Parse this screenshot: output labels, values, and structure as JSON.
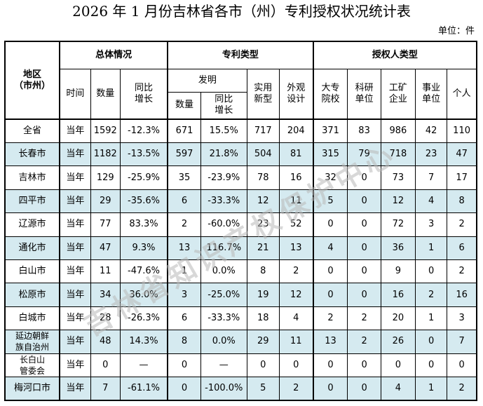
{
  "title": "2026 年 1 月份吉林省各市（州）专利授权状况统计表",
  "unit": "单位：件",
  "headers": {
    "region": "地区（市州）",
    "overall": "总体情况",
    "patent_type": "专利类型",
    "grantee_type": "授权人类型",
    "time": "时间",
    "count": "数量",
    "yoy": "同比增长",
    "invention": "发明",
    "invention_count": "数量",
    "invention_yoy": "同比增长",
    "utility": "实用新型",
    "design": "外观设计",
    "university": "大专院校",
    "research": "科研单位",
    "enterprise": "工矿企业",
    "institution": "事业单位",
    "individual": "个人"
  },
  "rows": [
    {
      "region": "全省",
      "time": "当年",
      "count": "1592",
      "yoy": "-12.3%",
      "inv_count": "671",
      "inv_yoy": "15.5%",
      "utility": "717",
      "design": "204",
      "univ": "371",
      "research": "83",
      "enterprise": "986",
      "institution": "42",
      "individual": "110",
      "shaded": false
    },
    {
      "region": "长春市",
      "time": "当年",
      "count": "1182",
      "yoy": "-13.5%",
      "inv_count": "597",
      "inv_yoy": "21.8%",
      "utility": "504",
      "design": "81",
      "univ": "315",
      "research": "79",
      "enterprise": "718",
      "institution": "23",
      "individual": "47",
      "shaded": true
    },
    {
      "region": "吉林市",
      "time": "当年",
      "count": "129",
      "yoy": "-25.9%",
      "inv_count": "35",
      "inv_yoy": "-23.9%",
      "utility": "78",
      "design": "16",
      "univ": "32",
      "research": "0",
      "enterprise": "73",
      "institution": "7",
      "individual": "17",
      "shaded": false
    },
    {
      "region": "四平市",
      "time": "当年",
      "count": "29",
      "yoy": "-35.6%",
      "inv_count": "6",
      "inv_yoy": "-33.3%",
      "utility": "12",
      "design": "11",
      "univ": "5",
      "research": "0",
      "enterprise": "12",
      "institution": "4",
      "individual": "8",
      "shaded": true
    },
    {
      "region": "辽源市",
      "time": "当年",
      "count": "77",
      "yoy": "83.3%",
      "inv_count": "2",
      "inv_yoy": "-60.0%",
      "utility": "23",
      "design": "52",
      "univ": "0",
      "research": "0",
      "enterprise": "72",
      "institution": "3",
      "individual": "2",
      "shaded": false
    },
    {
      "region": "通化市",
      "time": "当年",
      "count": "47",
      "yoy": "9.3%",
      "inv_count": "13",
      "inv_yoy": "116.7%",
      "utility": "21",
      "design": "13",
      "univ": "4",
      "research": "0",
      "enterprise": "36",
      "institution": "1",
      "individual": "6",
      "shaded": true
    },
    {
      "region": "白山市",
      "time": "当年",
      "count": "11",
      "yoy": "-47.6%",
      "inv_count": "1",
      "inv_yoy": "0.0%",
      "utility": "8",
      "design": "2",
      "univ": "0",
      "research": "0",
      "enterprise": "9",
      "institution": "0",
      "individual": "2",
      "shaded": false
    },
    {
      "region": "松原市",
      "time": "当年",
      "count": "34",
      "yoy": "36.0%",
      "inv_count": "3",
      "inv_yoy": "-25.0%",
      "utility": "19",
      "design": "12",
      "univ": "0",
      "research": "0",
      "enterprise": "16",
      "institution": "2",
      "individual": "16",
      "shaded": true
    },
    {
      "region": "白城市",
      "time": "当年",
      "count": "28",
      "yoy": "-26.3%",
      "inv_count": "6",
      "inv_yoy": "-33.3%",
      "utility": "18",
      "design": "4",
      "univ": "2",
      "research": "2",
      "enterprise": "20",
      "institution": "1",
      "individual": "3",
      "shaded": false
    },
    {
      "region": "延边朝鲜族自治州",
      "time": "当年",
      "count": "48",
      "yoy": "14.3%",
      "inv_count": "8",
      "inv_yoy": "0.0%",
      "utility": "29",
      "design": "11",
      "univ": "13",
      "research": "2",
      "enterprise": "26",
      "institution": "0",
      "individual": "7",
      "shaded": true
    },
    {
      "region": "长白山管委会",
      "time": "当年",
      "count": "0",
      "yoy": "—",
      "inv_count": "0",
      "inv_yoy": "—",
      "utility": "0",
      "design": "0",
      "univ": "0",
      "research": "0",
      "enterprise": "0",
      "institution": "0",
      "individual": "0",
      "shaded": false
    },
    {
      "region": "梅河口市",
      "time": "当年",
      "count": "7",
      "yoy": "-61.1%",
      "inv_count": "0",
      "inv_yoy": "-100.0%",
      "utility": "5",
      "design": "2",
      "univ": "0",
      "research": "0",
      "enterprise": "4",
      "institution": "1",
      "individual": "2",
      "shaded": true
    }
  ],
  "watermark": {
    "text": "吉林省知识产权保护中心",
    "color": "#b8b8b8"
  }
}
